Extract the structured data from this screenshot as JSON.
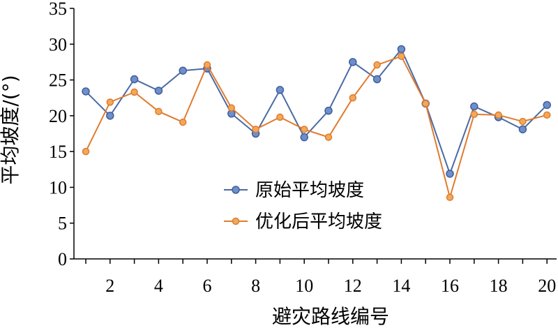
{
  "chart_data": {
    "type": "line",
    "xlabel": "避灾路线编号",
    "ylabel": "平均坡度/(°)",
    "x": [
      1,
      2,
      3,
      4,
      5,
      6,
      7,
      8,
      9,
      10,
      11,
      12,
      13,
      14,
      15,
      16,
      17,
      18,
      19,
      20
    ],
    "x_tick_labels": [
      "2",
      "4",
      "6",
      "8",
      "10",
      "12",
      "14",
      "16",
      "18",
      "20"
    ],
    "ylim": [
      0,
      35
    ],
    "y_ticks": [
      0,
      5,
      10,
      15,
      20,
      25,
      30,
      35
    ],
    "y_tick_labels": [
      "0",
      "5",
      "10",
      "15",
      "20",
      "25",
      "30",
      "35"
    ],
    "grid": false,
    "legend_position": "center",
    "series": [
      {
        "name": "原始平均坡度",
        "color": "#4a6aa5",
        "marker": "circle",
        "values": [
          23.4,
          20.0,
          25.1,
          23.5,
          26.3,
          26.6,
          20.3,
          17.5,
          23.6,
          17.0,
          20.7,
          27.5,
          25.1,
          29.3,
          21.7,
          11.9,
          21.3,
          19.8,
          18.1,
          21.5
        ]
      },
      {
        "name": "优化后平均坡度",
        "color": "#e07b2e",
        "marker": "circle",
        "values": [
          15.0,
          21.9,
          23.3,
          20.6,
          19.1,
          27.1,
          21.1,
          18.1,
          19.8,
          18.1,
          17.0,
          22.5,
          27.1,
          28.3,
          21.7,
          8.6,
          20.2,
          20.1,
          19.2,
          20.1
        ]
      }
    ]
  }
}
